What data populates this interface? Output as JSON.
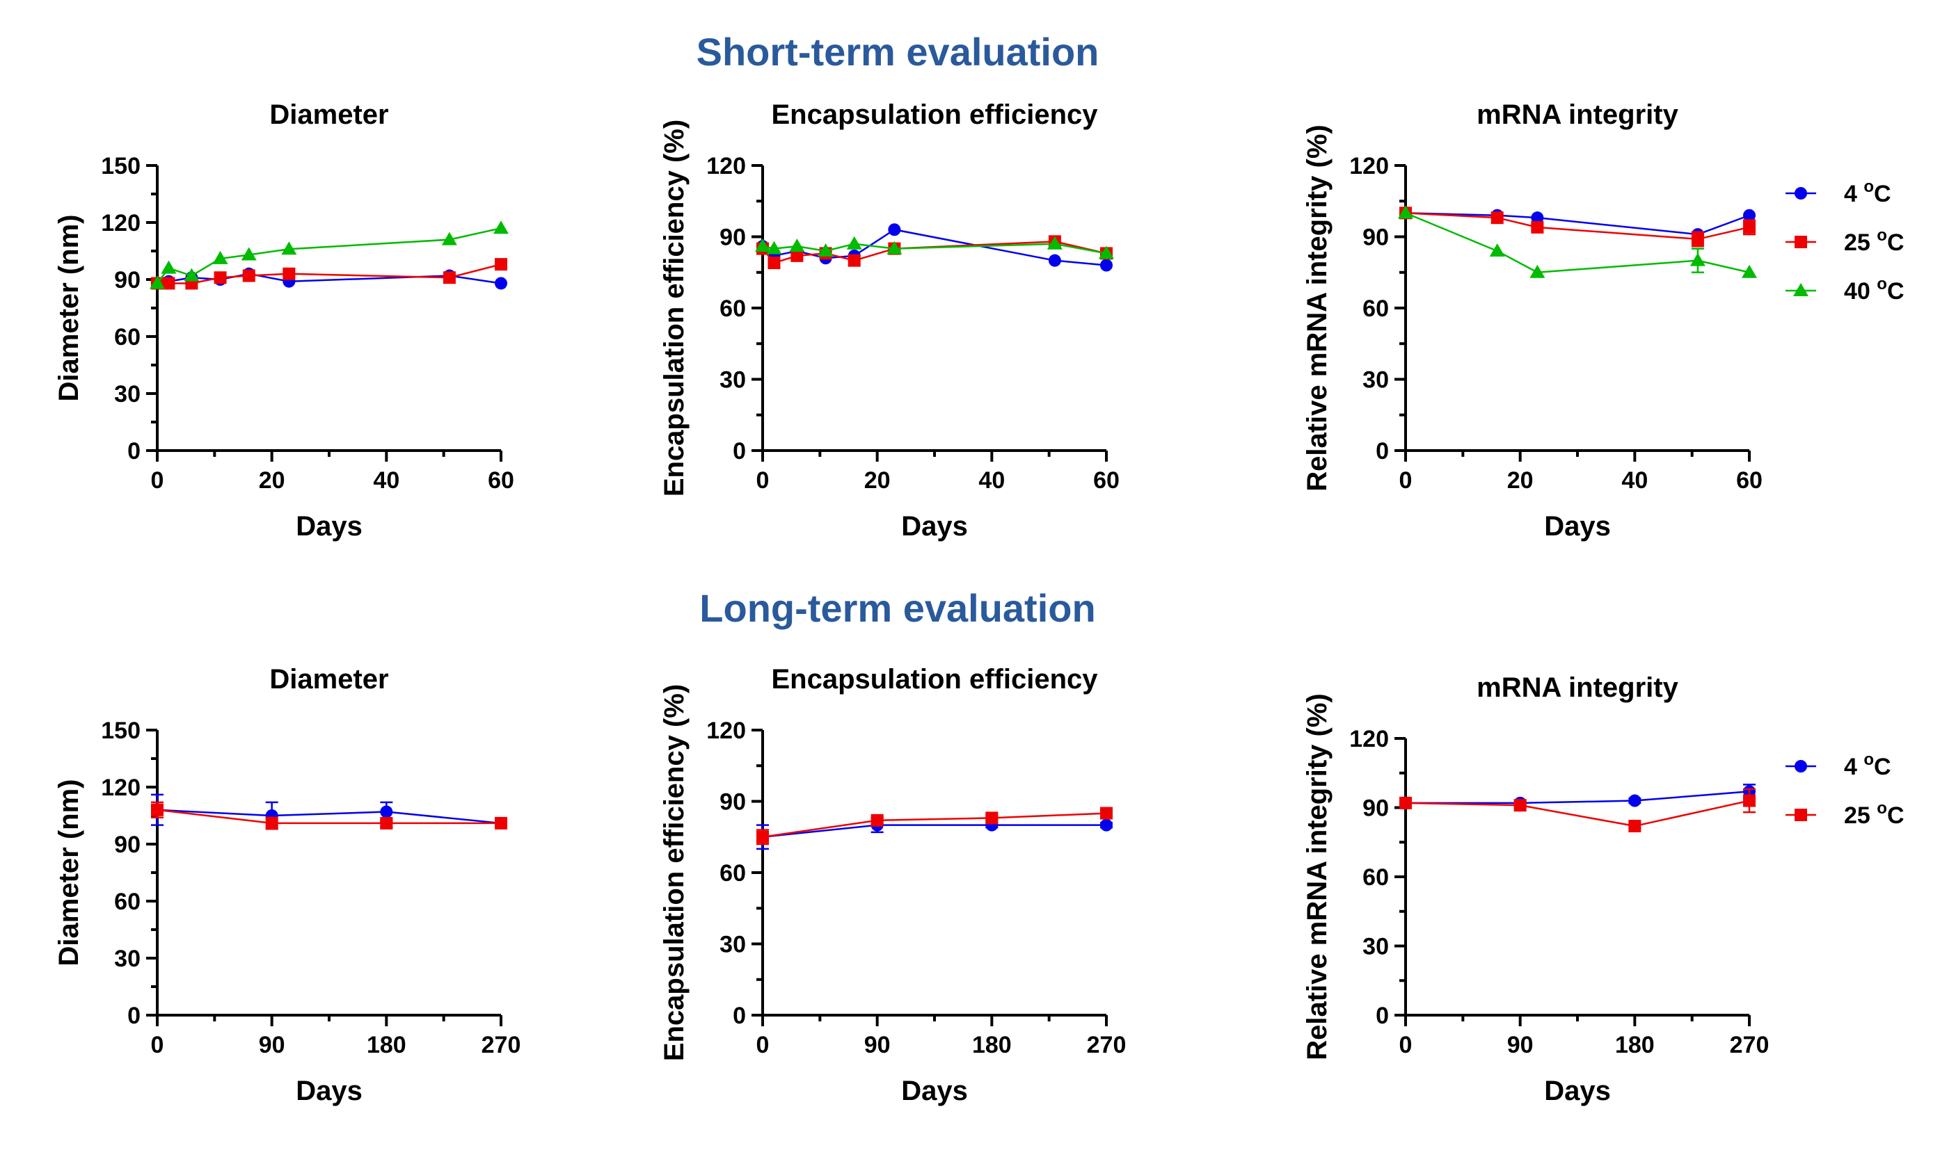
{
  "sections": {
    "short_title": "Short-term evaluation",
    "long_title": "Long-term evaluation"
  },
  "colors": {
    "4C": "#0000ee",
    "25C": "#ee0000",
    "40C": "#00bb00",
    "title": "#2a5a9c"
  },
  "chart_data": [
    {
      "type": "line",
      "title": "Diameter",
      "xlabel": "Days",
      "ylabel": "Diameter (nm)",
      "xlim": [
        0,
        60
      ],
      "xticks": [
        0,
        20,
        40,
        60
      ],
      "ylim": [
        0,
        150
      ],
      "yticks": [
        0,
        30,
        60,
        90,
        120,
        150
      ],
      "series": [
        {
          "name": "4 °C",
          "marker": "circle",
          "color": "#0000ee",
          "x": [
            0,
            2,
            6,
            11,
            16,
            23,
            51,
            60
          ],
          "y": [
            88,
            89,
            91,
            90,
            93,
            89,
            92,
            88
          ]
        },
        {
          "name": "25 °C",
          "marker": "square",
          "color": "#ee0000",
          "x": [
            0,
            2,
            6,
            11,
            16,
            23,
            51,
            60
          ],
          "y": [
            88,
            88,
            88,
            91,
            92,
            93,
            91,
            98
          ]
        },
        {
          "name": "40 °C",
          "marker": "triangle",
          "color": "#00bb00",
          "x": [
            0,
            2,
            6,
            11,
            16,
            23,
            51,
            60
          ],
          "y": [
            88,
            96,
            92,
            101,
            103,
            106,
            111,
            117
          ]
        }
      ]
    },
    {
      "type": "line",
      "title": "Encapsulation efficiency",
      "xlabel": "Days",
      "ylabel": "Encapsulation efficiency (%)",
      "xlim": [
        0,
        60
      ],
      "xticks": [
        0,
        20,
        40,
        60
      ],
      "ylim": [
        0,
        120
      ],
      "yticks": [
        0,
        30,
        60,
        90,
        120
      ],
      "series": [
        {
          "name": "4 °C",
          "marker": "circle",
          "color": "#0000ee",
          "x": [
            0,
            2,
            6,
            11,
            16,
            23,
            51,
            60
          ],
          "y": [
            86,
            82,
            84,
            81,
            82,
            93,
            80,
            78
          ]
        },
        {
          "name": "25 °C",
          "marker": "square",
          "color": "#ee0000",
          "x": [
            0,
            2,
            6,
            11,
            16,
            23,
            51,
            60
          ],
          "y": [
            85,
            79,
            82,
            83,
            80,
            85,
            88,
            83
          ]
        },
        {
          "name": "40 °C",
          "marker": "triangle",
          "color": "#00bb00",
          "x": [
            0,
            2,
            6,
            11,
            16,
            23,
            51,
            60
          ],
          "y": [
            86,
            85,
            86,
            84,
            87,
            85,
            87,
            83
          ]
        }
      ]
    },
    {
      "type": "line",
      "title": "mRNA integrity",
      "xlabel": "Days",
      "ylabel": "Relative mRNA integrity (%)",
      "xlim": [
        0,
        60
      ],
      "xticks": [
        0,
        20,
        40,
        60
      ],
      "ylim": [
        0,
        120
      ],
      "yticks": [
        0,
        30,
        60,
        90,
        120
      ],
      "series": [
        {
          "name": "4 °C",
          "marker": "circle",
          "color": "#0000ee",
          "x": [
            0,
            16,
            23,
            51,
            60
          ],
          "y": [
            100,
            99,
            98,
            91,
            99
          ]
        },
        {
          "name": "25 °C",
          "marker": "square",
          "color": "#ee0000",
          "x": [
            0,
            16,
            23,
            51,
            60
          ],
          "y": [
            100,
            98,
            94,
            89,
            94
          ],
          "err": [
            0,
            0,
            0,
            3,
            3
          ]
        },
        {
          "name": "40 °C",
          "marker": "triangle",
          "color": "#00bb00",
          "x": [
            0,
            16,
            23,
            51,
            60
          ],
          "y": [
            100,
            84,
            75,
            80,
            75
          ],
          "err": [
            0,
            0,
            0,
            5,
            0
          ]
        }
      ],
      "legend": {
        "position": "right",
        "entries": [
          "4 °C",
          "25 °C",
          "40 °C"
        ]
      }
    },
    {
      "type": "line",
      "title": "Diameter",
      "xlabel": "Days",
      "ylabel": "Diameter (nm)",
      "xlim": [
        0,
        270
      ],
      "xticks": [
        0,
        90,
        180,
        270
      ],
      "ylim": [
        0,
        150
      ],
      "yticks": [
        0,
        30,
        60,
        90,
        120,
        150
      ],
      "series": [
        {
          "name": "4 °C",
          "marker": "circle",
          "color": "#0000ee",
          "x": [
            0,
            90,
            180,
            270
          ],
          "y": [
            108,
            105,
            107,
            101
          ],
          "err": [
            8,
            7,
            5,
            2
          ]
        },
        {
          "name": "25 °C",
          "marker": "square",
          "color": "#ee0000",
          "x": [
            0,
            90,
            180,
            270
          ],
          "y": [
            108,
            101,
            101,
            101
          ],
          "err": [
            4,
            3,
            2,
            2
          ]
        }
      ]
    },
    {
      "type": "line",
      "title": "Encapsulation efficiency",
      "xlabel": "Days",
      "ylabel": "Encapsulation efficiency (%)",
      "xlim": [
        0,
        270
      ],
      "xticks": [
        0,
        90,
        180,
        270
      ],
      "ylim": [
        0,
        120
      ],
      "yticks": [
        0,
        30,
        60,
        90,
        120
      ],
      "series": [
        {
          "name": "4 °C",
          "marker": "circle",
          "color": "#0000ee",
          "x": [
            0,
            90,
            180,
            270
          ],
          "y": [
            75,
            80,
            80,
            80
          ],
          "err": [
            5,
            3,
            1,
            1
          ]
        },
        {
          "name": "25 °C",
          "marker": "square",
          "color": "#ee0000",
          "x": [
            0,
            90,
            180,
            270
          ],
          "y": [
            75,
            82,
            83,
            85
          ],
          "err": [
            3,
            1,
            1,
            1
          ]
        }
      ]
    },
    {
      "type": "line",
      "title": "mRNA integrity",
      "xlabel": "Days",
      "ylabel": "Relative mRNA integrity (%)",
      "xlim": [
        0,
        270
      ],
      "xticks": [
        0,
        90,
        180,
        270
      ],
      "ylim": [
        0,
        120
      ],
      "yticks": [
        0,
        30,
        60,
        90,
        120
      ],
      "series": [
        {
          "name": "4 °C",
          "marker": "circle",
          "color": "#0000ee",
          "x": [
            0,
            90,
            180,
            270
          ],
          "y": [
            92,
            92,
            93,
            97
          ],
          "err": [
            2,
            1,
            1,
            3
          ]
        },
        {
          "name": "25 °C",
          "marker": "square",
          "color": "#ee0000",
          "x": [
            0,
            90,
            180,
            270
          ],
          "y": [
            92,
            91,
            82,
            93
          ],
          "err": [
            1,
            1,
            1,
            5
          ]
        }
      ],
      "legend": {
        "position": "right",
        "entries": [
          "4 °C",
          "25 °C"
        ]
      }
    }
  ]
}
